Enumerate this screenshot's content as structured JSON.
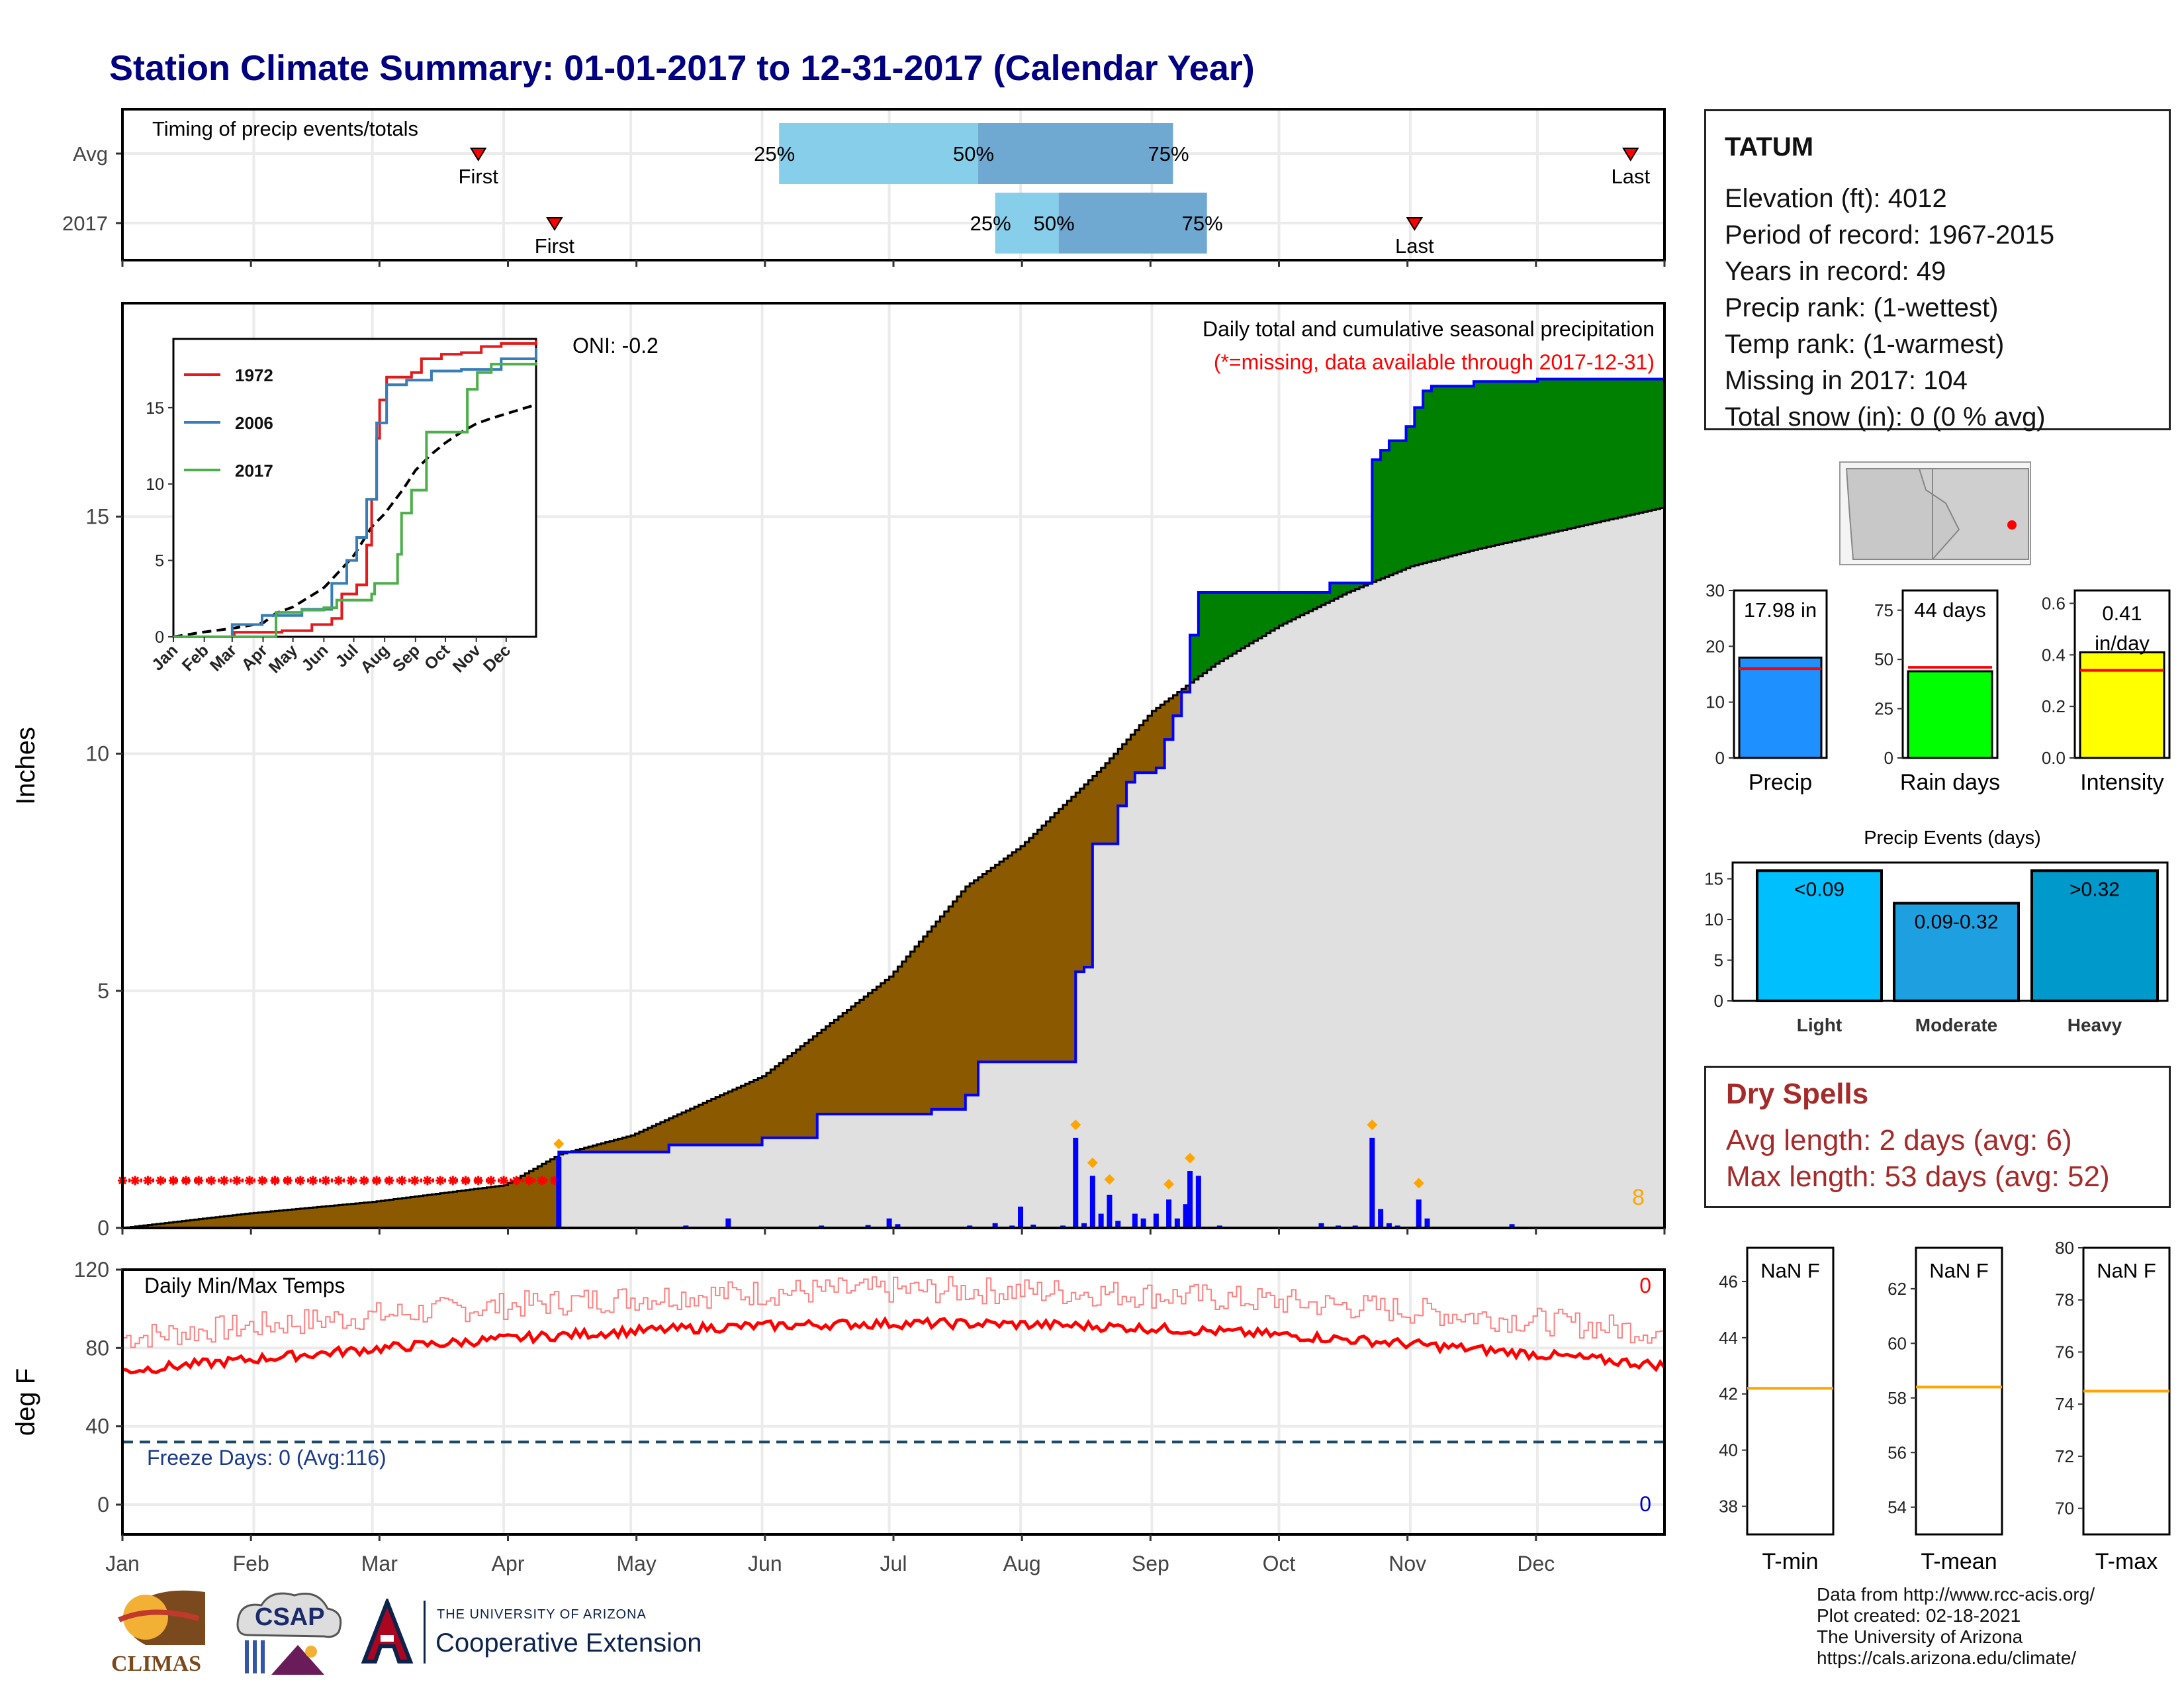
{
  "title": "Station Climate Summary: 01-01-2017 to 12-31-2017 (Calendar Year)",
  "months": [
    "Jan",
    "Feb",
    "Mar",
    "Apr",
    "May",
    "Jun",
    "Jul",
    "Aug",
    "Sep",
    "Oct",
    "Nov",
    "Dec"
  ],
  "colors": {
    "title": "#000080",
    "wet": "#008000",
    "dry": "#8B5A00",
    "climo": "#e0e0e0",
    "obs_line": "#0000ff",
    "missing": "#ff0000",
    "accent_orange": "#ffa500"
  },
  "timing": {
    "label": "Timing of precip events/totals",
    "rows": [
      {
        "name": "Avg",
        "first_doy": 85,
        "last_doy": 357,
        "q25_doy": 156,
        "q50_doy": 203,
        "q75_doy": 249
      },
      {
        "name": "2017",
        "first_doy": 103,
        "last_doy": 306,
        "q25_doy": 207,
        "q50_doy": 222,
        "q75_doy": 257
      }
    ],
    "first_label": "First",
    "last_label": "Last",
    "q_labels": [
      "25%",
      "50%",
      "75%"
    ]
  },
  "precip": {
    "ylabel": "Inches",
    "yticks": [
      "0",
      "5",
      "10",
      "15"
    ],
    "ymax": 19.5,
    "label_main": "Daily total and cumulative seasonal precipitation",
    "label_missing": "(*=missing, data available through 2017-12-31)",
    "oni_label": "ONI: -0.2",
    "corner_count": "8",
    "missing_end_doy": 104,
    "missing_level": 1.0
  },
  "inset": {
    "yticks": [
      "0",
      "5",
      "10",
      "15"
    ],
    "series_names": [
      "1972",
      "2006",
      "2017"
    ],
    "series_colors": [
      "#e41a1c",
      "#377eb8",
      "#4daf4a"
    ]
  },
  "temps": {
    "label": "Daily Min/Max Temps",
    "ylabel": "deg F",
    "yticks": [
      "0",
      "40",
      "80",
      "120"
    ],
    "freeze_label": "Freeze Days: 0 (Avg:116)",
    "max_count": "0",
    "min_count": "0",
    "freeze_threshold": 32
  },
  "station": {
    "name": "TATUM",
    "lines": [
      "Elevation (ft): 4012",
      "Period of record: 1967-2015",
      "Years in record: 49",
      "Precip rank:  (1-wettest)",
      "Temp rank:  (1-warmest)",
      "Missing in 2017: 104",
      "Total snow (in): 0 (0 % avg)"
    ]
  },
  "summary_bars": [
    {
      "label": "Precip",
      "value": 17.98,
      "avg": 16.0,
      "max": 30,
      "yticks": [
        "0",
        "10",
        "20",
        "30"
      ],
      "text": "17.98 in",
      "color": "#1e90ff"
    },
    {
      "label": "Rain days",
      "value": 44,
      "avg": 46,
      "max": 85,
      "yticks": [
        "0",
        "25",
        "50",
        "75"
      ],
      "text": "44 days",
      "color": "#00ff00"
    },
    {
      "label": "Intensity",
      "value": 0.41,
      "avg": 0.34,
      "max": 0.65,
      "yticks": [
        "0.0",
        "0.2",
        "0.4",
        "0.6"
      ],
      "text": "0.41 in/day",
      "color": "#ffff00"
    }
  ],
  "events": {
    "title": "Precip Events (days)",
    "yticks": [
      "0",
      "5",
      "10",
      "15"
    ],
    "bars": [
      {
        "label": "Light",
        "value": 16,
        "text": "<0.09",
        "color": "#00bfff"
      },
      {
        "label": "Moderate",
        "value": 12,
        "text": "0.09-0.32",
        "color": "#1e9fe0"
      },
      {
        "label": "Heavy",
        "value": 16,
        "text": ">0.32",
        "color": "#0099cc"
      }
    ]
  },
  "dry_spells": {
    "title": "Dry Spells",
    "avg_line": "Avg length: 2 days (avg: 6)",
    "max_line": "Max length: 53 days (avg: 52)"
  },
  "temp_panels": [
    {
      "label": "T-min",
      "value_text": "NaN F",
      "avg": 42.2,
      "yticks": [
        "38",
        "40",
        "42",
        "44",
        "46"
      ],
      "ymin": 37,
      "ymax": 47.2
    },
    {
      "label": "T-mean",
      "value_text": "NaN F",
      "avg": 58.4,
      "yticks": [
        "54",
        "56",
        "58",
        "60",
        "62"
      ],
      "ymin": 53,
      "ymax": 63.5
    },
    {
      "label": "T-max",
      "value_text": "NaN F",
      "avg": 74.5,
      "yticks": [
        "70",
        "72",
        "74",
        "76",
        "78",
        "80"
      ],
      "ymin": 69,
      "ymax": 80
    }
  ],
  "footer": {
    "lines": [
      "Data from http://www.rcc-acis.org/",
      "Plot created: 02-18-2021",
      "The University of Arizona",
      "https://cals.arizona.edu/climate/"
    ]
  },
  "logos": {
    "climas": "CLIMAS",
    "csap": "CSAP",
    "ua_small": "THE UNIVERSITY OF ARIZONA",
    "ua_big": "Cooperative Extension"
  }
}
